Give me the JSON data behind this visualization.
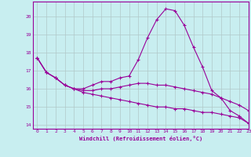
{
  "xlabel": "Windchill (Refroidissement éolien,°C)",
  "background_color": "#c8eef0",
  "line_color": "#990099",
  "grid_color": "#b0c8c8",
  "xlim": [
    -0.5,
    23
  ],
  "ylim": [
    13.8,
    20.8
  ],
  "yticks": [
    14,
    15,
    16,
    17,
    18,
    19,
    20
  ],
  "xticks": [
    0,
    1,
    2,
    3,
    4,
    5,
    6,
    7,
    8,
    9,
    10,
    11,
    12,
    13,
    14,
    15,
    16,
    17,
    18,
    19,
    20,
    21,
    22,
    23
  ],
  "series": [
    [
      17.7,
      16.9,
      16.6,
      16.2,
      16.0,
      16.0,
      16.2,
      16.4,
      16.4,
      16.6,
      16.7,
      17.6,
      18.8,
      19.8,
      20.4,
      20.3,
      19.5,
      18.3,
      17.2,
      15.9,
      15.5,
      14.8,
      14.5,
      14.1
    ],
    [
      17.7,
      16.9,
      16.6,
      16.2,
      16.0,
      15.9,
      15.9,
      16.0,
      16.0,
      16.1,
      16.2,
      16.3,
      16.3,
      16.2,
      16.2,
      16.1,
      16.0,
      15.9,
      15.8,
      15.7,
      15.5,
      15.3,
      15.1,
      14.8
    ],
    [
      17.7,
      16.9,
      16.6,
      16.2,
      16.0,
      15.8,
      15.7,
      15.6,
      15.5,
      15.4,
      15.3,
      15.2,
      15.1,
      15.0,
      15.0,
      14.9,
      14.9,
      14.8,
      14.7,
      14.7,
      14.6,
      14.5,
      14.4,
      14.1
    ]
  ]
}
